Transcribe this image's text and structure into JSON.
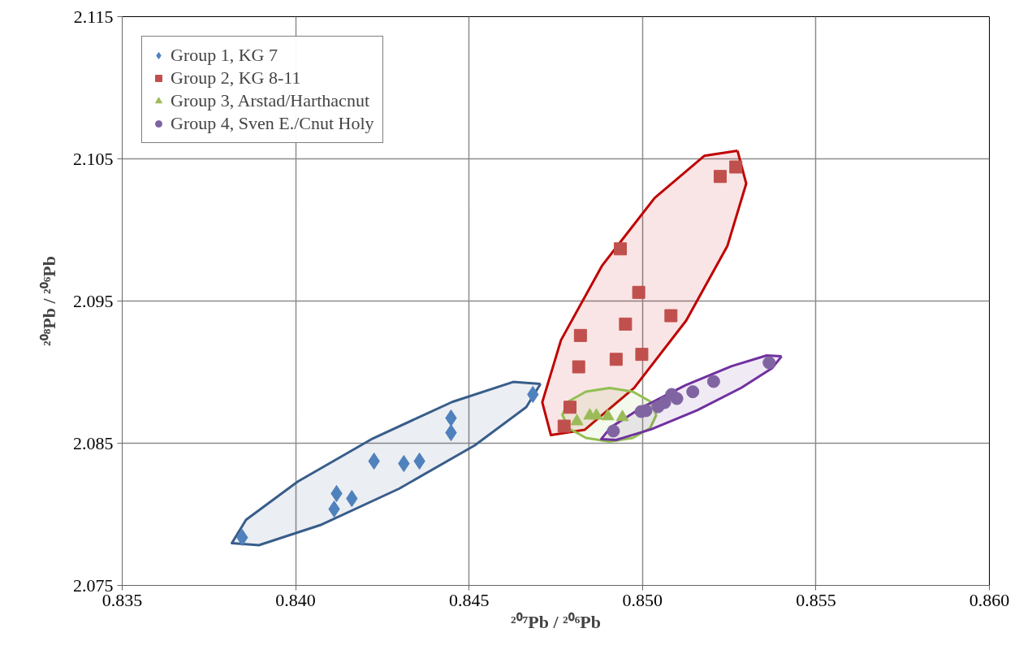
{
  "chart_data": {
    "type": "scatter",
    "xlabel": "²⁰⁷Pb / ²⁰⁶Pb",
    "ylabel": "²⁰⁸Pb / ²⁰⁶Pb",
    "xlim": [
      0.835,
      0.86
    ],
    "ylim": [
      2.075,
      2.115
    ],
    "xticks": [
      0.835,
      {
        "value": 0.84,
        "label": "0.840"
      },
      0.845,
      {
        "value": 0.85,
        "label": "0.850"
      },
      0.855,
      {
        "value": 0.86,
        "label": "0.860"
      }
    ],
    "yticks": [
      2.075,
      2.085,
      2.095,
      2.105,
      2.115
    ],
    "grid": true,
    "legend": "top left",
    "series": [
      {
        "type": "area",
        "color": "#385d8a",
        "x": [
          0.84706,
          0.84665,
          0.84516,
          0.84298,
          0.84071,
          0.83894,
          0.83816,
          0.83857,
          0.84006,
          0.84223,
          0.84451,
          0.84627,
          0.84706
        ],
        "values": [
          2.08917,
          2.08754,
          2.08484,
          2.0818,
          2.07924,
          2.07783,
          2.07797,
          2.07961,
          2.0823,
          2.08534,
          2.0879,
          2.08931,
          2.08917
        ]
      },
      {
        "type": "area",
        "color": "#c00000",
        "x": [
          0.85274,
          0.85299,
          0.85245,
          0.85126,
          0.84976,
          0.84833,
          0.84736,
          0.84711,
          0.84765,
          0.84884,
          0.85035,
          0.85178,
          0.85274
        ],
        "values": [
          2.10557,
          2.10326,
          2.09889,
          2.09363,
          2.08889,
          2.08594,
          2.08557,
          2.08788,
          2.09225,
          2.09751,
          2.10225,
          2.10521,
          2.10557
        ]
      },
      {
        "type": "area",
        "color": "#92c050",
        "x": [
          0.8504,
          0.85022,
          0.84972,
          0.84905,
          0.84837,
          0.84787,
          0.84769,
          0.84787,
          0.84837,
          0.84905,
          0.84972,
          0.85022,
          0.8504
        ],
        "values": [
          2.087,
          2.08606,
          2.08537,
          2.08511,
          2.08537,
          2.08606,
          2.087,
          2.08794,
          2.08863,
          2.08889,
          2.08863,
          2.08794,
          2.087
        ]
      },
      {
        "type": "area",
        "color": "#7030a0",
        "x": [
          0.85401,
          0.85374,
          0.85285,
          0.85158,
          0.85025,
          0.84924,
          0.84881,
          0.84908,
          0.84997,
          0.85124,
          0.85257,
          0.85358,
          0.85401
        ],
        "values": [
          2.09111,
          2.09029,
          2.0889,
          2.08732,
          2.08598,
          2.08523,
          2.08529,
          2.08611,
          2.0875,
          2.08908,
          2.09042,
          2.09117,
          2.09111
        ]
      },
      {
        "name": "Group 1, KG 7",
        "color": "#4f81bd",
        "marker": "diamond",
        "x": [
          0.83846,
          0.84111,
          0.84118,
          0.84162,
          0.84226,
          0.84312,
          0.84357,
          0.84448,
          0.84448,
          0.84684
        ],
        "values": [
          2.07837,
          2.08037,
          2.08146,
          2.08111,
          2.08374,
          2.08357,
          2.08374,
          2.08574,
          2.08677,
          2.08843
        ]
      },
      {
        "name": "Group 2, KG 8-11",
        "color": "#c0504d",
        "marker": "square",
        "x": [
          0.85269,
          0.85224,
          0.84936,
          0.84989,
          0.85082,
          0.84951,
          0.84821,
          0.84816,
          0.84924,
          0.84998,
          0.84791,
          0.84774
        ],
        "values": [
          2.10443,
          2.10376,
          2.09867,
          2.09561,
          2.09397,
          2.09338,
          2.09258,
          2.09037,
          2.0909,
          2.09125,
          2.08753,
          2.0862
        ]
      },
      {
        "name": "Group 3, Arstad/Harthacnut",
        "color": "#9bbb59",
        "marker": "triangle",
        "x": [
          0.84811,
          0.84848,
          0.84867,
          0.849,
          0.84942
        ],
        "values": [
          2.08654,
          2.08694,
          2.08694,
          2.08689,
          2.08683
        ]
      },
      {
        "name": "Group 4, Sven E./Cnut Holy",
        "color": "#8064a2",
        "marker": "circle",
        "x": [
          0.85365,
          0.85205,
          0.85145,
          0.85099,
          0.85084,
          0.85064,
          0.85045,
          0.8501,
          0.84996,
          0.84916
        ],
        "values": [
          2.09066,
          2.08934,
          2.08862,
          2.08814,
          2.08843,
          2.08786,
          2.08757,
          2.08729,
          2.08723,
          2.08586
        ]
      }
    ]
  }
}
